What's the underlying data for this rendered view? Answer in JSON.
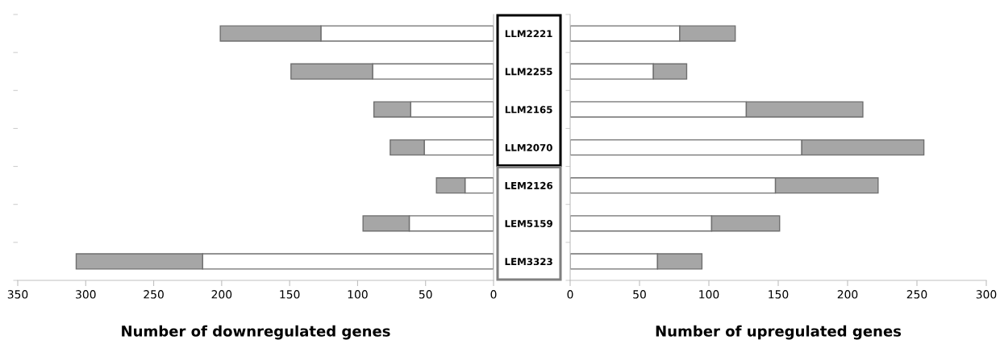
{
  "chart_data": [
    {
      "type": "bar",
      "orientation": "horizontal",
      "stacked": true,
      "categories": [
        null,
        null,
        null,
        null,
        null,
        null,
        null
      ],
      "series": [
        {
          "color": "#ffffff",
          "values": [
            127,
            89,
            61,
            51,
            21,
            62,
            214
          ]
        },
        {
          "color": "#a6a6a6",
          "values": [
            74,
            60,
            27,
            25,
            21,
            34,
            93
          ]
        }
      ],
      "xlim": [
        350,
        0
      ],
      "xticks": [
        350,
        300,
        250,
        200,
        150,
        100,
        50,
        0
      ],
      "xlabel": "Number of downregulated genes",
      "tick_labels": "x"
    },
    {
      "type": "bar",
      "orientation": "horizontal",
      "stacked": true,
      "categories": [
        "LLM2221",
        "LLM2255",
        "LLM2165",
        "LLM2070",
        "LEM2126",
        "LEM5159",
        "LEM3323"
      ],
      "series": [
        {
          "color": "#ffffff",
          "values": [
            79,
            60,
            127,
            167,
            148,
            102,
            63
          ]
        },
        {
          "color": "#a6a6a6",
          "values": [
            40,
            24,
            84,
            88,
            74,
            49,
            32
          ]
        }
      ],
      "xlim": [
        0,
        300
      ],
      "xticks": [
        0,
        50,
        100,
        150,
        200,
        250,
        300
      ],
      "xlabel": "Number of upregulated genes"
    }
  ]
}
